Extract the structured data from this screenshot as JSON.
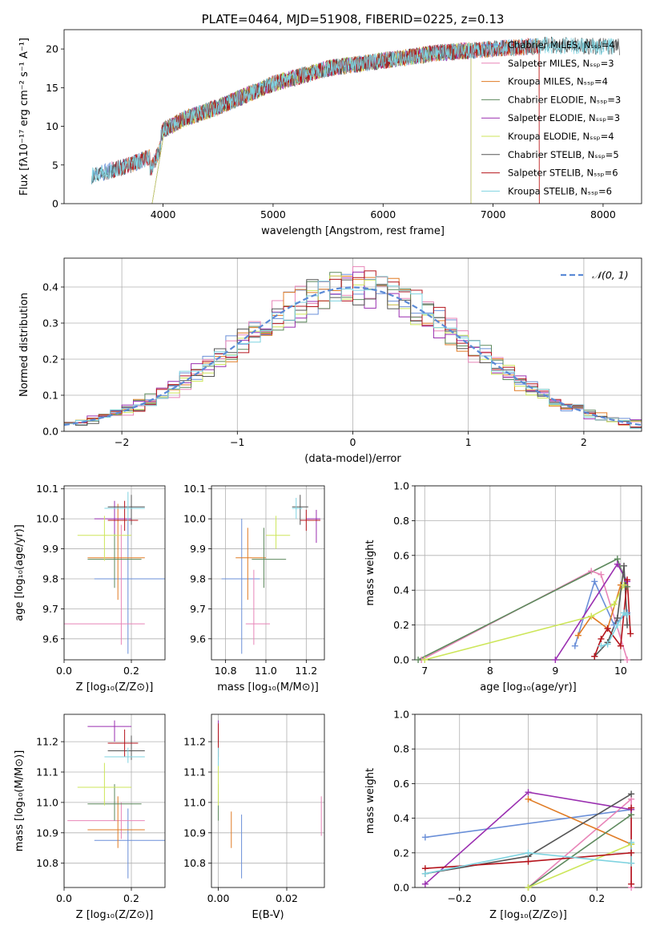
{
  "colors": {
    "chabrier_miles": "#6a8fd8",
    "salpeter_miles": "#e885b8",
    "kroupa_miles": "#e07b24",
    "chabrier_elodie": "#5e8a5e",
    "salpeter_elodie": "#9a2fb0",
    "kroupa_elodie": "#cde65a",
    "chabrier_stelib": "#555555",
    "salpeter_stelib": "#b5141c",
    "kroupa_stelib": "#7fd3e0",
    "normal_dashed": "#5b8ad6"
  },
  "chart_data": [
    {
      "id": "spectrum",
      "type": "line",
      "title": "PLATE=0464, MJD=51908, FIBERID=0225, z=0.13",
      "xlabel": "wavelength [Angstrom, rest frame]",
      "ylabel": "Flux [fλ10⁻¹⁷ erg cm⁻² s⁻¹ A⁻¹]",
      "xlim": [
        3100,
        8350
      ],
      "ylim": [
        0,
        22.5
      ],
      "xticks": [
        "4000",
        "5000",
        "6000",
        "7000",
        "8000"
      ],
      "yticks": [
        "0",
        "5",
        "10",
        "15",
        "20"
      ],
      "legend": [
        {
          "key": "chabrier_miles",
          "label": "Chabrier MILES, Nₛₛₚ=4"
        },
        {
          "key": "salpeter_miles",
          "label": "Salpeter MILES, Nₛₛₚ=3"
        },
        {
          "key": "kroupa_miles",
          "label": "Kroupa MILES, Nₛₛₚ=4"
        },
        {
          "key": "chabrier_elodie",
          "label": "Chabrier ELODIE, Nₛₛₚ=3"
        },
        {
          "key": "salpeter_elodie",
          "label": "Salpeter ELODIE, Nₛₛₚ=3"
        },
        {
          "key": "kroupa_elodie",
          "label": "Kroupa ELODIE, Nₛₛₚ=4"
        },
        {
          "key": "chabrier_stelib",
          "label": "Chabrier STELIB, Nₛₛₚ=5"
        },
        {
          "key": "salpeter_stelib",
          "label": "Salpeter STELIB, Nₛₛₚ=6"
        },
        {
          "key": "kroupa_stelib",
          "label": "Kroupa STELIB, Nₛₛₚ=6"
        }
      ],
      "continuum": [
        [
          3350,
          3.6
        ],
        [
          3500,
          4.2
        ],
        [
          3700,
          5.0
        ],
        [
          3900,
          6.2
        ],
        [
          4000,
          9.5
        ],
        [
          4200,
          11.0
        ],
        [
          4500,
          12.5
        ],
        [
          5000,
          15.5
        ],
        [
          5500,
          17.5
        ],
        [
          6000,
          18.5
        ],
        [
          6500,
          19.5
        ],
        [
          7000,
          20.0
        ],
        [
          7500,
          20.5
        ],
        [
          8100,
          20.3
        ]
      ],
      "legend_position": "upper right"
    },
    {
      "id": "residuals",
      "type": "histogram",
      "xlabel": "(data-model)/error",
      "ylabel": "Normed distribution",
      "xlim": [
        -2.5,
        2.5
      ],
      "ylim": [
        0,
        0.48
      ],
      "xticks": [
        "−2",
        "−1",
        "0",
        "1",
        "2"
      ],
      "yticks": [
        "0.0",
        "0.1",
        "0.2",
        "0.3",
        "0.4"
      ],
      "bin_width": 0.1,
      "legend": [
        {
          "key": "normal_dashed",
          "label": "𝒩(0, 1)"
        }
      ],
      "legend_position": "upper right",
      "grid": true
    },
    {
      "id": "age_vs_Z",
      "type": "errorbar",
      "xlabel": "Z [log₁₀(Z/Z⊙)]",
      "ylabel": "age  [log₁₀(age/yr)]",
      "xlim": [
        0.0,
        0.3
      ],
      "ylim": [
        9.53,
        10.11
      ],
      "xticks": [
        "0.0",
        "0.2"
      ],
      "yticks": [
        "9.6",
        "9.7",
        "9.8",
        "9.9",
        "10.0",
        "10.1"
      ],
      "points": [
        {
          "key": "chabrier_miles",
          "x": 0.19,
          "y": 9.8,
          "xerr": [
            0.09,
            0.3
          ],
          "yerr": [
            9.55,
            10.0
          ]
        },
        {
          "key": "salpeter_miles",
          "x": 0.17,
          "y": 9.65,
          "xerr": [
            0.0,
            0.24
          ],
          "yerr": [
            9.58,
            9.98
          ]
        },
        {
          "key": "kroupa_miles",
          "x": 0.16,
          "y": 9.87,
          "xerr": [
            0.07,
            0.24
          ],
          "yerr": [
            9.73,
            10.05
          ]
        },
        {
          "key": "chabrier_elodie",
          "x": 0.15,
          "y": 9.865,
          "xerr": [
            0.07,
            0.23
          ],
          "yerr": [
            9.77,
            9.98
          ]
        },
        {
          "key": "salpeter_elodie",
          "x": 0.15,
          "y": 10.0,
          "xerr": [
            0.09,
            0.2
          ],
          "yerr": [
            9.95,
            10.06
          ]
        },
        {
          "key": "kroupa_elodie",
          "x": 0.12,
          "y": 9.945,
          "xerr": [
            0.04,
            0.2
          ],
          "yerr": [
            9.86,
            10.01
          ]
        },
        {
          "key": "chabrier_stelib",
          "x": 0.2,
          "y": 10.04,
          "xerr": [
            0.13,
            0.24
          ],
          "yerr": [
            9.98,
            10.08
          ]
        },
        {
          "key": "salpeter_stelib",
          "x": 0.18,
          "y": 9.995,
          "xerr": [
            0.13,
            0.22
          ],
          "yerr": [
            9.96,
            10.06
          ]
        },
        {
          "key": "kroupa_stelib",
          "x": 0.19,
          "y": 10.035,
          "xerr": [
            0.12,
            0.24
          ],
          "yerr": [
            9.99,
            10.09
          ]
        }
      ],
      "grid": true
    },
    {
      "id": "age_vs_mass",
      "type": "errorbar",
      "xlabel": "mass [log₁₀(M/M⊙)]",
      "ylabel": "",
      "xlim": [
        10.73,
        11.29
      ],
      "ylim": [
        9.53,
        10.11
      ],
      "xticks": [
        "10.8",
        "11.0",
        "11.2"
      ],
      "yticks": [
        "9.6",
        "9.7",
        "9.8",
        "9.9",
        "10.0",
        "10.1"
      ],
      "points": [
        {
          "key": "chabrier_miles",
          "x": 10.88,
          "y": 9.8,
          "xerr": [
            10.78,
            10.97
          ],
          "yerr": [
            9.55,
            10.0
          ]
        },
        {
          "key": "salpeter_miles",
          "x": 10.94,
          "y": 9.65,
          "xerr": [
            10.9,
            11.02
          ],
          "yerr": [
            9.58,
            9.83
          ]
        },
        {
          "key": "kroupa_miles",
          "x": 10.91,
          "y": 9.87,
          "xerr": [
            10.85,
            11.0
          ],
          "yerr": [
            9.73,
            9.97
          ]
        },
        {
          "key": "chabrier_elodie",
          "x": 10.99,
          "y": 9.865,
          "xerr": [
            10.93,
            11.1
          ],
          "yerr": [
            9.77,
            9.97
          ]
        },
        {
          "key": "salpeter_elodie",
          "x": 11.25,
          "y": 10.0,
          "xerr": [
            11.2,
            11.27
          ],
          "yerr": [
            9.92,
            10.03
          ]
        },
        {
          "key": "kroupa_elodie",
          "x": 11.05,
          "y": 9.945,
          "xerr": [
            11.0,
            11.12
          ],
          "yerr": [
            9.9,
            10.01
          ]
        },
        {
          "key": "chabrier_stelib",
          "x": 11.17,
          "y": 10.04,
          "xerr": [
            11.13,
            11.21
          ],
          "yerr": [
            9.98,
            10.08
          ]
        },
        {
          "key": "salpeter_stelib",
          "x": 11.2,
          "y": 9.995,
          "xerr": [
            11.17,
            11.27
          ],
          "yerr": [
            9.96,
            10.03
          ]
        },
        {
          "key": "kroupa_stelib",
          "x": 11.15,
          "y": 10.035,
          "xerr": [
            11.13,
            11.18
          ],
          "yerr": [
            10.0,
            10.07
          ]
        }
      ],
      "grid": true
    },
    {
      "id": "weight_vs_age",
      "type": "line",
      "xlabel": "age  [log₁₀(age/yr)]",
      "ylabel": "mass weight",
      "xlim": [
        6.85,
        10.32
      ],
      "ylim": [
        0,
        1
      ],
      "xticks": [
        "7",
        "8",
        "9",
        "10"
      ],
      "yticks": [
        "0.0",
        "0.2",
        "0.4",
        "0.6",
        "0.8",
        "1.0"
      ],
      "series": [
        {
          "key": "chabrier_miles",
          "points": [
            [
              9.3,
              0.08
            ],
            [
              9.6,
              0.45
            ],
            [
              9.9,
              0.2
            ],
            [
              10.1,
              0.27
            ]
          ]
        },
        {
          "key": "salpeter_miles",
          "points": [
            [
              6.95,
              0.0
            ],
            [
              9.55,
              0.51
            ],
            [
              9.7,
              0.49
            ],
            [
              10.1,
              0.0
            ]
          ]
        },
        {
          "key": "kroupa_miles",
          "points": [
            [
              9.35,
              0.14
            ],
            [
              9.55,
              0.25
            ],
            [
              9.8,
              0.18
            ],
            [
              10.0,
              0.43
            ]
          ]
        },
        {
          "key": "chabrier_elodie",
          "points": [
            [
              6.9,
              0.0
            ],
            [
              9.95,
              0.58
            ],
            [
              10.1,
              0.42
            ]
          ]
        },
        {
          "key": "salpeter_elodie",
          "points": [
            [
              9.0,
              0.0
            ],
            [
              9.95,
              0.55
            ],
            [
              10.1,
              0.45
            ]
          ]
        },
        {
          "key": "kroupa_elodie",
          "points": [
            [
              7.0,
              0.0
            ],
            [
              9.55,
              0.25
            ],
            [
              9.9,
              0.32
            ],
            [
              10.05,
              0.43
            ]
          ]
        },
        {
          "key": "chabrier_stelib",
          "points": [
            [
              9.6,
              0.02
            ],
            [
              9.8,
              0.1
            ],
            [
              9.95,
              0.24
            ],
            [
              10.05,
              0.54
            ],
            [
              10.1,
              0.2
            ]
          ]
        },
        {
          "key": "salpeter_stelib",
          "points": [
            [
              9.6,
              0.02
            ],
            [
              9.7,
              0.12
            ],
            [
              9.8,
              0.18
            ],
            [
              10.0,
              0.08
            ],
            [
              10.1,
              0.46
            ],
            [
              10.15,
              0.15
            ]
          ]
        },
        {
          "key": "kroupa_stelib",
          "points": [
            [
              9.7,
              0.08
            ],
            [
              9.8,
              0.09
            ],
            [
              9.95,
              0.2
            ],
            [
              10.05,
              0.27
            ],
            [
              10.1,
              0.26
            ]
          ]
        }
      ],
      "grid": true
    },
    {
      "id": "mass_vs_Z",
      "type": "errorbar",
      "xlabel": "Z [log₁₀(Z/Z⊙)]",
      "ylabel": "mass [log₁₀(M/M⊙)]",
      "xlim": [
        0.0,
        0.3
      ],
      "ylim": [
        10.72,
        11.29
      ],
      "xticks": [
        "0.0",
        "0.2"
      ],
      "yticks": [
        "10.8",
        "10.9",
        "11.0",
        "11.1",
        "11.2"
      ],
      "points": [
        {
          "key": "chabrier_miles",
          "x": 0.19,
          "y": 10.875,
          "xerr": [
            0.09,
            0.3
          ],
          "yerr": [
            10.75,
            10.98
          ]
        },
        {
          "key": "salpeter_miles",
          "x": 0.17,
          "y": 10.94,
          "xerr": [
            0.01,
            0.24
          ],
          "yerr": [
            10.88,
            11.0
          ]
        },
        {
          "key": "kroupa_miles",
          "x": 0.16,
          "y": 10.91,
          "xerr": [
            0.07,
            0.24
          ],
          "yerr": [
            10.85,
            11.02
          ]
        },
        {
          "key": "chabrier_elodie",
          "x": 0.15,
          "y": 10.995,
          "xerr": [
            0.07,
            0.23
          ],
          "yerr": [
            10.94,
            11.06
          ]
        },
        {
          "key": "salpeter_elodie",
          "x": 0.15,
          "y": 11.25,
          "xerr": [
            0.07,
            0.2
          ],
          "yerr": [
            11.2,
            11.27
          ]
        },
        {
          "key": "kroupa_elodie",
          "x": 0.12,
          "y": 11.05,
          "xerr": [
            0.04,
            0.2
          ],
          "yerr": [
            10.99,
            11.13
          ]
        },
        {
          "key": "chabrier_stelib",
          "x": 0.2,
          "y": 11.17,
          "xerr": [
            0.13,
            0.24
          ],
          "yerr": [
            11.14,
            11.22
          ]
        },
        {
          "key": "salpeter_stelib",
          "x": 0.18,
          "y": 11.195,
          "xerr": [
            0.13,
            0.22
          ],
          "yerr": [
            11.15,
            11.24
          ]
        },
        {
          "key": "kroupa_stelib",
          "x": 0.19,
          "y": 11.15,
          "xerr": [
            0.12,
            0.24
          ],
          "yerr": [
            11.13,
            11.18
          ]
        }
      ],
      "grid": true
    },
    {
      "id": "mass_vs_ebv",
      "type": "errorbar",
      "xlabel": "E(B-V)",
      "ylabel": "",
      "xlim": [
        -0.002,
        0.031
      ],
      "ylim": [
        10.72,
        11.29
      ],
      "xticks": [
        "0.00",
        "0.02"
      ],
      "yticks": [
        "10.8",
        "10.9",
        "11.0",
        "11.1",
        "11.2"
      ],
      "points": [
        {
          "key": "chabrier_miles",
          "x": 0.0068,
          "y": 10.86,
          "yerr": [
            10.75,
            10.96
          ]
        },
        {
          "key": "salpeter_miles",
          "x": 0.0301,
          "y": 10.96,
          "yerr": [
            10.89,
            11.02
          ]
        },
        {
          "key": "kroupa_miles",
          "x": 0.0038,
          "y": 10.91,
          "yerr": [
            10.85,
            10.97
          ]
        },
        {
          "key": "chabrier_elodie",
          "x": 0.0,
          "y": 11.0,
          "yerr": [
            10.94,
            11.06
          ]
        },
        {
          "key": "salpeter_elodie",
          "x": 0.0,
          "y": 11.24,
          "yerr": [
            11.2,
            11.27
          ]
        },
        {
          "key": "kroupa_elodie",
          "x": 0.0,
          "y": 11.05,
          "yerr": [
            10.99,
            11.13
          ]
        },
        {
          "key": "chabrier_stelib",
          "x": 0.0,
          "y": 11.17,
          "yerr": [
            11.14,
            11.22
          ]
        },
        {
          "key": "salpeter_stelib",
          "x": 0.0,
          "y": 11.2,
          "yerr": [
            11.15,
            11.26
          ]
        },
        {
          "key": "kroupa_stelib",
          "x": 0.0,
          "y": 11.15,
          "yerr": [
            11.12,
            11.18
          ]
        }
      ],
      "grid": true
    },
    {
      "id": "weight_vs_Z",
      "type": "line",
      "xlabel": "Z [log₁₀(Z/Z⊙)]",
      "ylabel": "mass weight",
      "xlim": [
        -0.33,
        0.33
      ],
      "ylim": [
        0,
        1
      ],
      "xticks": [
        "−0.2",
        "0.0",
        "0.2"
      ],
      "yticks": [
        "0.0",
        "0.2",
        "0.4",
        "0.6",
        "0.8",
        "1.0"
      ],
      "series": [
        {
          "key": "chabrier_miles",
          "points": [
            [
              -0.3,
              0.29
            ],
            [
              0.3,
              0.45
            ]
          ]
        },
        {
          "key": "salpeter_miles",
          "points": [
            [
              0.0,
              0.0
            ],
            [
              0.3,
              0.51
            ],
            [
              0.3,
              0.0
            ]
          ]
        },
        {
          "key": "kroupa_miles",
          "points": [
            [
              0.0,
              0.51
            ],
            [
              0.3,
              0.25
            ],
            [
              0.3,
              0.14
            ]
          ]
        },
        {
          "key": "chabrier_elodie",
          "points": [
            [
              0.0,
              0.0
            ],
            [
              0.3,
              0.42
            ]
          ]
        },
        {
          "key": "salpeter_elodie",
          "points": [
            [
              -0.3,
              0.02
            ],
            [
              0.0,
              0.55
            ],
            [
              0.3,
              0.45
            ]
          ]
        },
        {
          "key": "kroupa_elodie",
          "points": [
            [
              0.0,
              0.0
            ],
            [
              0.3,
              0.25
            ]
          ]
        },
        {
          "key": "chabrier_stelib",
          "points": [
            [
              -0.3,
              0.08
            ],
            [
              0.0,
              0.18
            ],
            [
              0.3,
              0.54
            ]
          ]
        },
        {
          "key": "salpeter_stelib",
          "points": [
            [
              -0.3,
              0.11
            ],
            [
              0.0,
              0.15
            ],
            [
              0.3,
              0.2
            ],
            [
              0.3,
              0.46
            ],
            [
              0.3,
              0.02
            ]
          ]
        },
        {
          "key": "kroupa_stelib",
          "points": [
            [
              -0.3,
              0.08
            ],
            [
              0.0,
              0.2
            ],
            [
              0.3,
              0.14
            ],
            [
              0.3,
              0.26
            ]
          ]
        }
      ],
      "grid": true
    }
  ]
}
